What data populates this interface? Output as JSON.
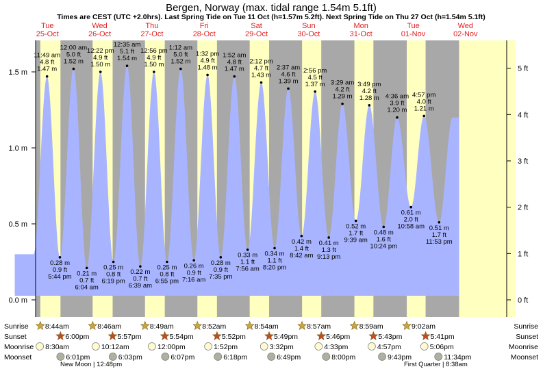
{
  "title": "Bergen, Norway (max. tidal range 1.54m 5.1ft)",
  "subtitle": "Times are CEST (UTC +2.0hrs). Last Spring Tide on Tue 11 Oct (h=1.57m 5.2ft). Next Spring Tide on Thu 27 Oct (h=1.54m 5.1ft)",
  "days": [
    {
      "dow": "Tue",
      "date": "25-Oct"
    },
    {
      "dow": "Wed",
      "date": "26-Oct"
    },
    {
      "dow": "Thu",
      "date": "27-Oct"
    },
    {
      "dow": "Fri",
      "date": "28-Oct"
    },
    {
      "dow": "Sat",
      "date": "29-Oct"
    },
    {
      "dow": "Sun",
      "date": "30-Oct"
    },
    {
      "dow": "Mon",
      "date": "31-Oct"
    },
    {
      "dow": "Tue",
      "date": "01-Nov"
    },
    {
      "dow": "Wed",
      "date": "02-Nov"
    }
  ],
  "row_labels": {
    "sunrise": "Sunrise",
    "sunset": "Sunset",
    "moonrise": "Moonrise",
    "moonset": "Moonset"
  },
  "moon_phases": {
    "new_moon": "New Moon | 12:48pm",
    "first_quarter": "First Quarter | 8:38am"
  },
  "colors": {
    "water": "#a8b4ff",
    "daylight": "#ffffc0",
    "night": "#a8a8a8",
    "day_name": "#e02020",
    "sun_star": "#c8a838",
    "sunset_star": "#c84820"
  },
  "chart_data": {
    "type": "area",
    "title": "Bergen, Norway (max. tidal range 1.54m 5.1ft)",
    "ylabel_left": "m",
    "ylabel_right": "ft",
    "ylim_m": [
      -0.15,
      1.72
    ],
    "x_range_hours": [
      "24-Oct 18:00",
      "02-Nov 18:00"
    ],
    "y_ticks_m": [
      "0.0 m",
      "0.5 m",
      "1.0 m",
      "1.5 m"
    ],
    "y_ticks_ft": [
      "0 ft",
      "1 ft",
      "2 ft",
      "3 ft",
      "4 ft",
      "5 ft"
    ],
    "grid": false,
    "tides": [
      {
        "day": 0,
        "time": "11:49 am",
        "h_m": 1.47,
        "ft": "4.8 ft",
        "m": "1.47 m",
        "type": "high"
      },
      {
        "day": 0,
        "time": "5:44 pm",
        "h_m": 0.28,
        "ft": "0.9 ft",
        "m": "0.28 m",
        "type": "low"
      },
      {
        "day": 1,
        "time": "12:00 am",
        "h_m": 1.52,
        "ft": "5.0 ft",
        "m": "1.52 m",
        "type": "high"
      },
      {
        "day": 1,
        "time": "6:04 am",
        "h_m": 0.21,
        "ft": "0.7 ft",
        "m": "0.21 m",
        "type": "low"
      },
      {
        "day": 1,
        "time": "12:22 pm",
        "h_m": 1.5,
        "ft": "4.9 ft",
        "m": "1.50 m",
        "type": "high"
      },
      {
        "day": 1,
        "time": "6:19 pm",
        "h_m": 0.25,
        "ft": "0.8 ft",
        "m": "0.25 m",
        "type": "low"
      },
      {
        "day": 2,
        "time": "12:35 am",
        "h_m": 1.54,
        "ft": "5.1 ft",
        "m": "1.54 m",
        "type": "high"
      },
      {
        "day": 2,
        "time": "6:39 am",
        "h_m": 0.22,
        "ft": "0.7 ft",
        "m": "0.22 m",
        "type": "low"
      },
      {
        "day": 2,
        "time": "12:56 pm",
        "h_m": 1.5,
        "ft": "4.9 ft",
        "m": "1.50 m",
        "type": "high"
      },
      {
        "day": 2,
        "time": "6:55 pm",
        "h_m": 0.25,
        "ft": "0.8 ft",
        "m": "0.25 m",
        "type": "low"
      },
      {
        "day": 3,
        "time": "1:12 am",
        "h_m": 1.52,
        "ft": "5.0 ft",
        "m": "1.52 m",
        "type": "high"
      },
      {
        "day": 3,
        "time": "7:16 am",
        "h_m": 0.26,
        "ft": "0.9 ft",
        "m": "0.26 m",
        "type": "low"
      },
      {
        "day": 3,
        "time": "1:32 pm",
        "h_m": 1.48,
        "ft": "4.9 ft",
        "m": "1.48 m",
        "type": "high"
      },
      {
        "day": 3,
        "time": "7:35 pm",
        "h_m": 0.28,
        "ft": "0.9 ft",
        "m": "0.28 m",
        "type": "low"
      },
      {
        "day": 4,
        "time": "1:52 am",
        "h_m": 1.47,
        "ft": "4.8 ft",
        "m": "1.47 m",
        "type": "high"
      },
      {
        "day": 4,
        "time": "7:56 am",
        "h_m": 0.33,
        "ft": "1.1 ft",
        "m": "0.33 m",
        "type": "low"
      },
      {
        "day": 4,
        "time": "2:12 pm",
        "h_m": 1.43,
        "ft": "4.7 ft",
        "m": "1.43 m",
        "type": "high"
      },
      {
        "day": 4,
        "time": "8:20 pm",
        "h_m": 0.34,
        "ft": "1.1 ft",
        "m": "0.34 m",
        "type": "low"
      },
      {
        "day": 5,
        "time": "2:37 am",
        "h_m": 1.39,
        "ft": "4.6 ft",
        "m": "1.39 m",
        "type": "high"
      },
      {
        "day": 5,
        "time": "8:42 am",
        "h_m": 0.42,
        "ft": "1.4 ft",
        "m": "0.42 m",
        "type": "low"
      },
      {
        "day": 5,
        "time": "2:56 pm",
        "h_m": 1.37,
        "ft": "4.5 ft",
        "m": "1.37 m",
        "type": "high"
      },
      {
        "day": 5,
        "time": "9:13 pm",
        "h_m": 0.41,
        "ft": "1.3 ft",
        "m": "0.41 m",
        "type": "low"
      },
      {
        "day": 6,
        "time": "3:29 am",
        "h_m": 1.29,
        "ft": "4.2 ft",
        "m": "1.29 m",
        "type": "high"
      },
      {
        "day": 6,
        "time": "9:39 am",
        "h_m": 0.52,
        "ft": "1.7 ft",
        "m": "0.52 m",
        "type": "low"
      },
      {
        "day": 6,
        "time": "3:49 pm",
        "h_m": 1.28,
        "ft": "4.2 ft",
        "m": "1.28 m",
        "type": "high"
      },
      {
        "day": 6,
        "time": "10:24 pm",
        "h_m": 0.48,
        "ft": "1.6 ft",
        "m": "0.48 m",
        "type": "low"
      },
      {
        "day": 7,
        "time": "4:36 am",
        "h_m": 1.2,
        "ft": "3.9 ft",
        "m": "1.20 m",
        "type": "high"
      },
      {
        "day": 7,
        "time": "10:58 am",
        "h_m": 0.61,
        "ft": "2.0 ft",
        "m": "0.61 m",
        "type": "low"
      },
      {
        "day": 7,
        "time": "4:57 pm",
        "h_m": 1.21,
        "ft": "4.0 ft",
        "m": "1.21 m",
        "type": "high"
      },
      {
        "day": 7,
        "time": "11:53 pm",
        "h_m": 0.51,
        "ft": "1.7 ft",
        "m": "0.51 m",
        "type": "low"
      }
    ],
    "sun": [
      {
        "day": 0,
        "sunrise": "8:44am",
        "sunset": "6:00pm"
      },
      {
        "day": 1,
        "sunrise": "8:46am",
        "sunset": "5:57pm"
      },
      {
        "day": 2,
        "sunrise": "8:49am",
        "sunset": "5:54pm"
      },
      {
        "day": 3,
        "sunrise": "8:52am",
        "sunset": "5:52pm"
      },
      {
        "day": 4,
        "sunrise": "8:54am",
        "sunset": "5:49pm"
      },
      {
        "day": 5,
        "sunrise": "8:57am",
        "sunset": "5:46pm"
      },
      {
        "day": 6,
        "sunrise": "8:59am",
        "sunset": "5:43pm"
      },
      {
        "day": 7,
        "sunrise": "9:02am",
        "sunset": "5:41pm"
      }
    ],
    "moon": [
      {
        "day": 0,
        "moonrise": "8:30am",
        "moonset": "6:01pm"
      },
      {
        "day": 1,
        "moonrise": "10:12am",
        "moonset": "6:03pm"
      },
      {
        "day": 2,
        "moonrise": "12:00pm",
        "moonset": "6:07pm"
      },
      {
        "day": 3,
        "moonrise": "1:52pm",
        "moonset": "6:18pm"
      },
      {
        "day": 4,
        "moonrise": "3:32pm",
        "moonset": "6:49pm"
      },
      {
        "day": 5,
        "moonrise": "4:33pm",
        "moonset": "8:00pm"
      },
      {
        "day": 6,
        "moonrise": "4:57pm",
        "moonset": "9:43pm"
      },
      {
        "day": 7,
        "moonrise": "5:06pm",
        "moonset": "11:34pm"
      }
    ]
  }
}
